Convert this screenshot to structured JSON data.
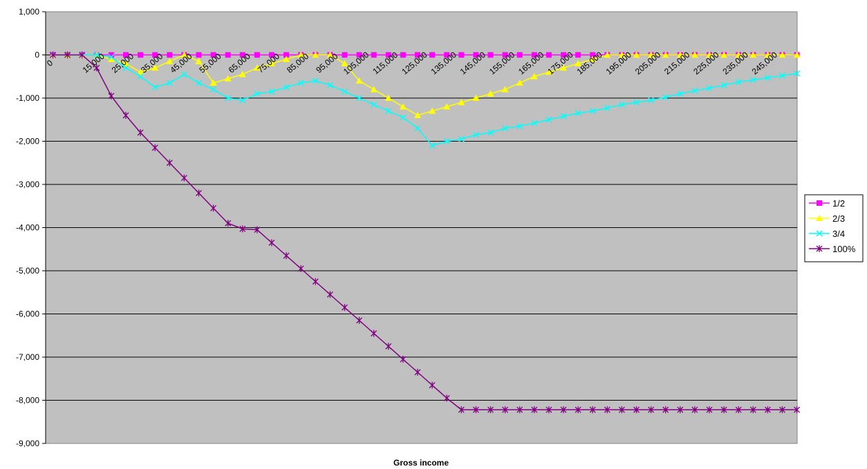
{
  "chart_data": {
    "type": "line",
    "title": "",
    "xlabel": "Gross income",
    "ylabel": "",
    "ylim": [
      -9000,
      1000
    ],
    "yticks": [
      1000,
      0,
      -1000,
      -2000,
      -3000,
      -4000,
      -5000,
      -6000,
      -7000,
      -8000,
      -9000
    ],
    "ytick_labels": [
      "1,000",
      "0",
      "-1,000",
      "-2,000",
      "-3,000",
      "-4,000",
      "-5,000",
      "-6,000",
      "-7,000",
      "-8,000",
      "-9,000"
    ],
    "x": [
      0,
      5000,
      10000,
      15000,
      20000,
      25000,
      30000,
      35000,
      40000,
      45000,
      50000,
      55000,
      60000,
      65000,
      70000,
      75000,
      80000,
      85000,
      90000,
      95000,
      100000,
      105000,
      110000,
      115000,
      120000,
      125000,
      130000,
      135000,
      140000,
      145000,
      150000,
      155000,
      160000,
      165000,
      170000,
      175000,
      180000,
      185000,
      190000,
      195000,
      200000,
      205000,
      210000,
      215000,
      220000,
      225000,
      230000,
      235000,
      240000,
      245000,
      250000,
      255000
    ],
    "xtick_labels": [
      "0",
      "15,000",
      "25,000",
      "35,000",
      "45,000",
      "55,000",
      "65,000",
      "75,000",
      "85,000",
      "95,000",
      "105,000",
      "115,000",
      "125,000",
      "135,000",
      "145,000",
      "155,000",
      "165,000",
      "175,000",
      "185,000",
      "195,000",
      "205,000",
      "215,000",
      "225,000",
      "235,000",
      "245,000"
    ],
    "grid": true,
    "legend_position": "right",
    "background": "#c0c0c0",
    "series": [
      {
        "name": "1/2",
        "color": "#ff00ff",
        "marker": "square",
        "values": [
          0,
          0,
          0,
          0,
          0,
          0,
          0,
          0,
          0,
          0,
          0,
          0,
          0,
          0,
          0,
          0,
          0,
          0,
          0,
          0,
          0,
          0,
          0,
          0,
          0,
          0,
          0,
          0,
          0,
          0,
          0,
          0,
          0,
          0,
          0,
          0,
          0,
          0,
          0,
          0,
          0,
          0,
          0,
          0,
          0,
          0,
          0,
          0,
          0,
          0,
          0,
          0
        ]
      },
      {
        "name": "2/3",
        "color": "#ffff00",
        "marker": "triangle",
        "values": [
          0,
          0,
          0,
          0,
          -100,
          -200,
          -400,
          -300,
          -150,
          0,
          -150,
          -650,
          -550,
          -450,
          -300,
          -200,
          -100,
          0,
          0,
          0,
          -200,
          -600,
          -800,
          -1000,
          -1200,
          -1400,
          -1300,
          -1200,
          -1100,
          -1000,
          -900,
          -800,
          -650,
          -500,
          -400,
          -300,
          -200,
          -100,
          0,
          0,
          0,
          0,
          0,
          0,
          0,
          0,
          0,
          0,
          0,
          0,
          0,
          0
        ]
      },
      {
        "name": "3/4",
        "color": "#00ffff",
        "marker": "x",
        "values": [
          0,
          0,
          0,
          0,
          -50,
          -300,
          -500,
          -750,
          -650,
          -450,
          -650,
          -800,
          -1000,
          -1050,
          -900,
          -850,
          -750,
          -650,
          -600,
          -700,
          -850,
          -1000,
          -1150,
          -1300,
          -1450,
          -1700,
          -2100,
          -2000,
          -1950,
          -1850,
          -1800,
          -1700,
          -1650,
          -1580,
          -1500,
          -1420,
          -1350,
          -1300,
          -1230,
          -1150,
          -1100,
          -1050,
          -980,
          -900,
          -830,
          -770,
          -700,
          -630,
          -580,
          -530,
          -480,
          -430
        ]
      },
      {
        "name": "100%",
        "color": "#800080",
        "marker": "asterisk",
        "values": [
          0,
          0,
          0,
          -300,
          -950,
          -1400,
          -1800,
          -2150,
          -2500,
          -2850,
          -3200,
          -3550,
          -3900,
          -4030,
          -4050,
          -4350,
          -4650,
          -4950,
          -5250,
          -5550,
          -5850,
          -6150,
          -6450,
          -6750,
          -7050,
          -7350,
          -7650,
          -7950,
          -8220,
          -8220,
          -8220,
          -8220,
          -8220,
          -8220,
          -8220,
          -8220,
          -8220,
          -8220,
          -8220,
          -8220,
          -8220,
          -8220,
          -8220,
          -8220,
          -8220,
          -8220,
          -8220,
          -8220,
          -8220,
          -8220,
          -8220,
          -8220
        ]
      }
    ]
  }
}
